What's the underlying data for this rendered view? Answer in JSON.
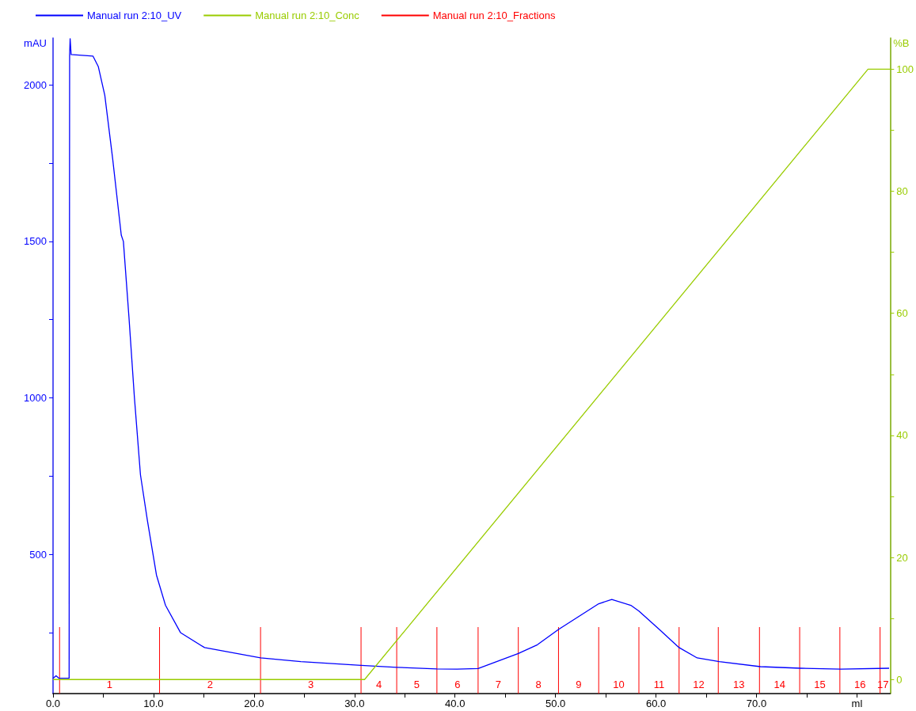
{
  "chart_data": {
    "type": "line",
    "xlim": [
      0,
      83.3
    ],
    "xticks": [
      {
        "value": 0,
        "label": "0.0"
      },
      {
        "value": 5,
        "label": null
      },
      {
        "value": 10,
        "label": "10.0"
      },
      {
        "value": 15,
        "label": null
      },
      {
        "value": 20,
        "label": "20.0"
      },
      {
        "value": 25,
        "label": null
      },
      {
        "value": 30,
        "label": "30.0"
      },
      {
        "value": 35,
        "label": null
      },
      {
        "value": 40,
        "label": "40.0"
      },
      {
        "value": 45,
        "label": null
      },
      {
        "value": 50,
        "label": "50.0"
      },
      {
        "value": 55,
        "label": null
      },
      {
        "value": 60,
        "label": "60.0"
      },
      {
        "value": 65,
        "label": null
      },
      {
        "value": 70,
        "label": "70.0"
      },
      {
        "value": 75,
        "label": null
      },
      {
        "value": 80,
        "label": "ml"
      }
    ],
    "ylabel": "mAU",
    "ylim": [
      55,
      2150
    ],
    "yticks": [
      {
        "value": 250,
        "label": null
      },
      500,
      {
        "value": 750,
        "label": null
      },
      1000,
      {
        "value": 1250,
        "label": null
      },
      1500,
      {
        "value": 1750,
        "label": null
      },
      2000
    ],
    "y2label": "%B",
    "y2lim": [
      -2.3,
      105.1
    ],
    "y2ticks": [
      0,
      {
        "value": 10,
        "label": null
      },
      20,
      {
        "value": 30,
        "label": null
      },
      40,
      {
        "value": 50,
        "label": null
      },
      60,
      {
        "value": 70,
        "label": null
      },
      80,
      {
        "value": 90,
        "label": null
      },
      100
    ],
    "legend": "top left",
    "grid": false,
    "marker": "none",
    "series": [
      {
        "name": "Manual run 2:10_UV",
        "color": "#0000ff",
        "x": [
          0,
          0.3,
          0.6,
          1.6,
          1.65,
          1.7,
          1.8,
          3.98,
          4.5,
          5.15,
          5.93,
          6.79,
          7.0,
          7.55,
          8.1,
          8.7,
          9.39,
          10.29,
          11.19,
          12.68,
          15.08,
          20.65,
          24.66,
          30.65,
          34.2,
          38.2,
          40.2,
          42.3,
          46.3,
          48.2,
          50.3,
          54.3,
          55.6,
          57.5,
          58.3,
          60.4,
          62.3,
          64.1,
          66.3,
          70.4,
          74.4,
          78.4,
          83.2
        ],
        "values": [
          104,
          112,
          104,
          104,
          2097,
          2148,
          2097,
          2092,
          2059,
          1967,
          1765,
          1520,
          1500,
          1260,
          1000,
          754,
          608,
          434,
          337,
          250,
          202,
          169,
          157,
          145,
          139,
          134,
          133,
          135,
          183,
          211,
          260,
          342,
          356,
          337,
          319,
          258,
          202,
          169,
          157,
          141,
          136,
          133,
          136
        ]
      },
      {
        "name": "Manual run 2:10_Conc",
        "color": "#99cc00",
        "axis": "y2",
        "x": [
          0,
          31.0,
          81.1,
          83.3
        ],
        "values": [
          0,
          0,
          100,
          100
        ]
      },
      {
        "name": "Manual run 2:10_Fractions",
        "color": "#ff0000"
      }
    ],
    "ref_lines": [
      {
        "axis": "x",
        "value": 0.65,
        "color": "#ff0000"
      },
      {
        "axis": "x",
        "value": 10.6,
        "color": "#ff0000"
      },
      {
        "axis": "x",
        "value": 20.65,
        "color": "#ff0000"
      },
      {
        "axis": "x",
        "value": 30.65,
        "color": "#ff0000"
      },
      {
        "axis": "x",
        "value": 34.2,
        "color": "#ff0000"
      },
      {
        "axis": "x",
        "value": 38.2,
        "color": "#ff0000"
      },
      {
        "axis": "x",
        "value": 42.3,
        "color": "#ff0000"
      },
      {
        "axis": "x",
        "value": 46.3,
        "color": "#ff0000"
      },
      {
        "axis": "x",
        "value": 50.3,
        "color": "#ff0000"
      },
      {
        "axis": "x",
        "value": 54.3,
        "color": "#ff0000"
      },
      {
        "axis": "x",
        "value": 58.3,
        "color": "#ff0000"
      },
      {
        "axis": "x",
        "value": 62.3,
        "color": "#ff0000"
      },
      {
        "axis": "x",
        "value": 66.2,
        "color": "#ff0000"
      },
      {
        "axis": "x",
        "value": 70.3,
        "color": "#ff0000"
      },
      {
        "axis": "x",
        "value": 74.3,
        "color": "#ff0000"
      },
      {
        "axis": "x",
        "value": 78.3,
        "color": "#ff0000"
      },
      {
        "axis": "x",
        "value": 82.3,
        "color": "#ff0000"
      }
    ],
    "annotations": [
      "1",
      "2",
      "3",
      "4",
      "5",
      "6",
      "7",
      "8",
      "9",
      "10",
      "11",
      "12",
      "13",
      "14",
      "15",
      "16",
      "17"
    ]
  }
}
